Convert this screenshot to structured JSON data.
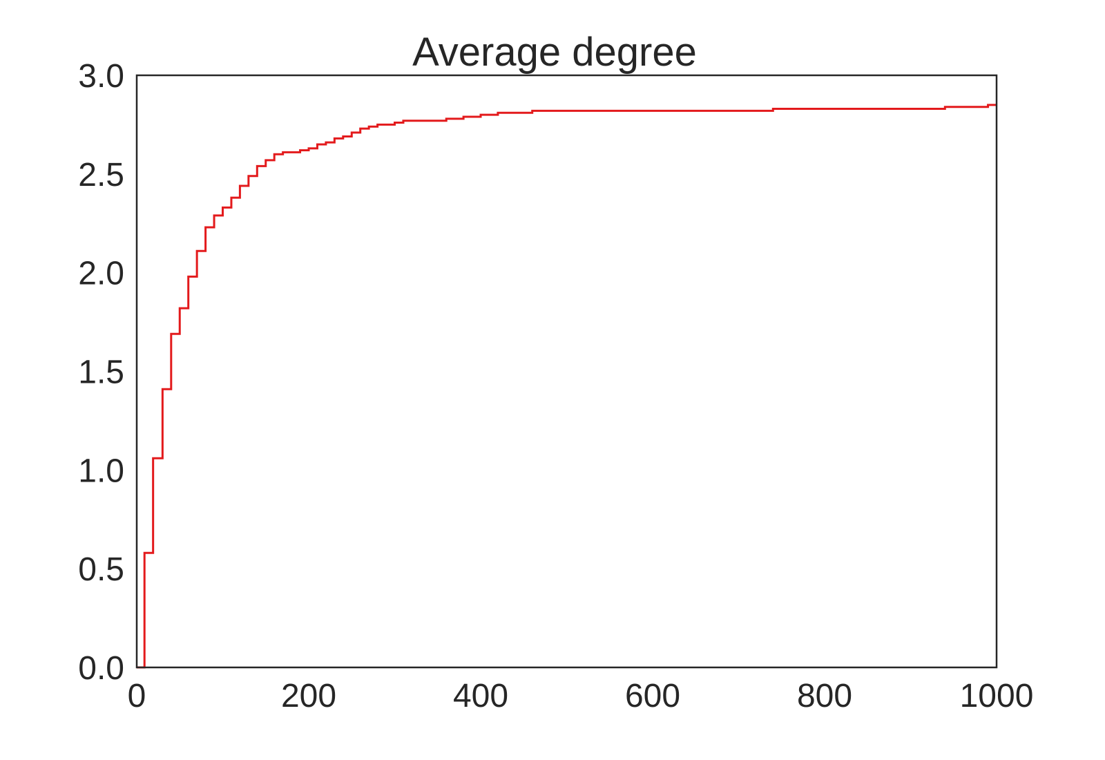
{
  "chart_data": {
    "type": "line",
    "title": "Average degree",
    "xlabel": "",
    "ylabel": "",
    "xlim": [
      0,
      1000
    ],
    "ylim": [
      0,
      3.0
    ],
    "x_ticks": [
      0,
      200,
      400,
      600,
      800,
      1000
    ],
    "x_tick_labels": [
      "0",
      "200",
      "400",
      "600",
      "800",
      "1000"
    ],
    "y_ticks": [
      0,
      0.5,
      1.0,
      1.5,
      2.0,
      2.5,
      3.0
    ],
    "y_tick_labels": [
      "0.0",
      "0.5",
      "1.0",
      "1.5",
      "2.0",
      "2.5",
      "3.0"
    ],
    "grid": false,
    "legend": "none",
    "line_style": "step",
    "series": [
      {
        "color": "#e31a1c",
        "x": [
          0,
          9,
          19,
          30,
          40,
          50,
          60,
          70,
          80,
          90,
          100,
          110,
          120,
          130,
          140,
          150,
          160,
          170,
          190,
          200,
          210,
          220,
          230,
          240,
          250,
          260,
          270,
          280,
          300,
          310,
          360,
          380,
          400,
          420,
          460,
          740,
          940,
          990,
          1000
        ],
        "y": [
          0,
          0.58,
          1.06,
          1.41,
          1.69,
          1.82,
          1.98,
          2.11,
          2.23,
          2.29,
          2.33,
          2.38,
          2.44,
          2.49,
          2.54,
          2.57,
          2.6,
          2.61,
          2.62,
          2.63,
          2.65,
          2.66,
          2.68,
          2.69,
          2.71,
          2.73,
          2.74,
          2.75,
          2.76,
          2.77,
          2.78,
          2.79,
          2.8,
          2.81,
          2.82,
          2.83,
          2.84,
          2.85,
          2.85
        ]
      }
    ]
  }
}
